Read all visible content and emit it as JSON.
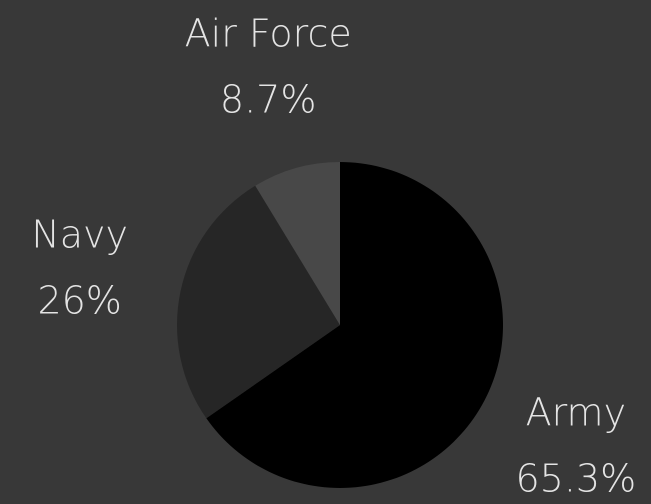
{
  "chart_data": {
    "type": "pie",
    "categories": [
      "Army",
      "Navy",
      "Air Force"
    ],
    "values": [
      65.3,
      26,
      8.7
    ],
    "value_labels": [
      "65.3%",
      "26%",
      "8.7%"
    ],
    "colors": [
      "#000000",
      "#262626",
      "#484848"
    ]
  }
}
